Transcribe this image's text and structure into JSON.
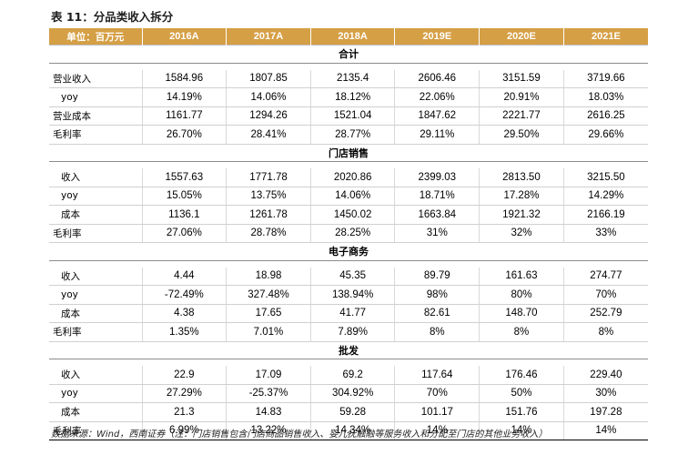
{
  "title": "表 11：分品类收入拆分",
  "header": {
    "unit": "单位：百万元",
    "years": [
      "2016A",
      "2017A",
      "2018A",
      "2019E",
      "2020E",
      "2021E"
    ]
  },
  "sections": [
    {
      "name": "合计",
      "rows": [
        {
          "label": "营业收入",
          "values": [
            "1584.96",
            "1807.85",
            "2135.4",
            "2606.46",
            "3151.59",
            "3719.66"
          ]
        },
        {
          "label": "yoy",
          "values": [
            "14.19%",
            "14.06%",
            "18.12%",
            "22.06%",
            "20.91%",
            "18.03%"
          ]
        },
        {
          "label": "营业成本",
          "values": [
            "1161.77",
            "1294.26",
            "1521.04",
            "1847.62",
            "2221.77",
            "2616.25"
          ]
        },
        {
          "label": "毛利率",
          "values": [
            "26.70%",
            "28.41%",
            "28.77%",
            "29.11%",
            "29.50%",
            "29.66%"
          ]
        }
      ]
    },
    {
      "name": "门店销售",
      "rows": [
        {
          "label": "收入",
          "values": [
            "1557.63",
            "1771.78",
            "2020.86",
            "2399.03",
            "2813.50",
            "3215.50"
          ]
        },
        {
          "label": "yoy",
          "values": [
            "15.05%",
            "13.75%",
            "14.06%",
            "18.71%",
            "17.28%",
            "14.29%"
          ]
        },
        {
          "label": "成本",
          "values": [
            "1136.1",
            "1261.78",
            "1450.02",
            "1663.84",
            "1921.32",
            "2166.19"
          ]
        },
        {
          "label": "毛利率",
          "values": [
            "27.06%",
            "28.78%",
            "28.25%",
            "31%",
            "32%",
            "33%"
          ]
        }
      ]
    },
    {
      "name": "电子商务",
      "rows": [
        {
          "label": "收入",
          "values": [
            "4.44",
            "18.98",
            "45.35",
            "89.79",
            "161.63",
            "274.77"
          ]
        },
        {
          "label": "yoy",
          "values": [
            "-72.49%",
            "327.48%",
            "138.94%",
            "98%",
            "80%",
            "70%"
          ]
        },
        {
          "label": "成本",
          "values": [
            "4.38",
            "17.65",
            "41.77",
            "82.61",
            "148.70",
            "252.79"
          ]
        },
        {
          "label": "毛利率",
          "values": [
            "1.35%",
            "7.01%",
            "7.89%",
            "8%",
            "8%",
            "8%"
          ]
        }
      ]
    },
    {
      "name": "批发",
      "rows": [
        {
          "label": "收入",
          "values": [
            "22.9",
            "17.09",
            "69.2",
            "117.64",
            "176.46",
            "229.40"
          ]
        },
        {
          "label": "yoy",
          "values": [
            "27.29%",
            "-25.37%",
            "304.92%",
            "70%",
            "50%",
            "30%"
          ]
        },
        {
          "label": "成本",
          "values": [
            "21.3",
            "14.83",
            "59.28",
            "101.17",
            "151.76",
            "197.28"
          ]
        },
        {
          "label": "毛利率",
          "values": [
            "6.99%",
            "13.22%",
            "14.34%",
            "14%",
            "14%",
            "14%"
          ]
        }
      ]
    }
  ],
  "footer": "数据来源：Wind，西南证券（注：门店销售包含门店商品销售收入、婴儿抚触融等服务收入和分配至门店的其他业务收入）",
  "colors": {
    "header_bg": "#d59f45",
    "header_text": "#ffffff"
  }
}
